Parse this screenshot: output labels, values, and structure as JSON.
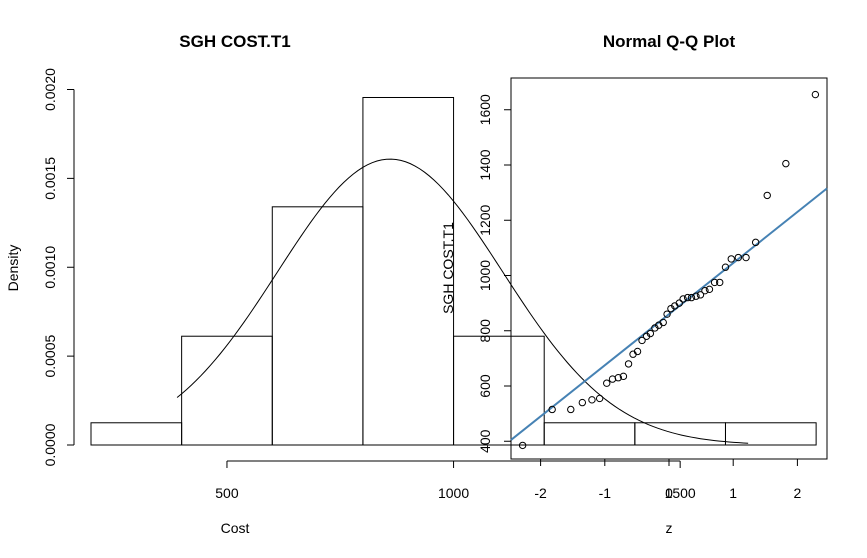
{
  "chart_data": [
    {
      "type": "histogram",
      "title": "SGH COST.T1",
      "xlabel": "Cost",
      "ylabel": "Density",
      "xticks": [
        500,
        1000,
        1500
      ],
      "yticks": [
        0.0,
        0.0005,
        0.001,
        0.0015,
        0.002
      ],
      "ytick_labels": [
        "0.0000",
        "0.0005",
        "0.0010",
        "0.0015",
        "0.0020"
      ],
      "bins": [
        {
          "from": 200,
          "to": 400,
          "density": 0.000125
        },
        {
          "from": 400,
          "to": 600,
          "density": 0.000612
        },
        {
          "from": 600,
          "to": 800,
          "density": 0.00134
        },
        {
          "from": 800,
          "to": 1000,
          "density": 0.001955
        },
        {
          "from": 1000,
          "to": 1200,
          "density": 0.000612
        },
        {
          "from": 1200,
          "to": 1400,
          "density": 0.000125
        },
        {
          "from": 1400,
          "to": 1600,
          "density": 0.000125
        },
        {
          "from": 1600,
          "to": 1800,
          "density": 0.000125
        }
      ],
      "density_curve": {
        "type": "normal",
        "mean": 860,
        "sd": 248,
        "x_range": [
          390,
          1650
        ]
      }
    },
    {
      "type": "scatter",
      "title": "Normal Q-Q Plot",
      "xlabel": "z",
      "ylabel": "SGH COST.T1",
      "xticks": [
        -2,
        -1,
        0,
        1,
        2
      ],
      "yticks": [
        400,
        600,
        800,
        1000,
        1200,
        1400,
        1600
      ],
      "points": {
        "x": [
          -2.28,
          -1.82,
          -1.53,
          -1.35,
          -1.2,
          -1.08,
          -0.97,
          -0.88,
          -0.79,
          -0.71,
          -0.63,
          -0.56,
          -0.49,
          -0.42,
          -0.35,
          -0.29,
          -0.22,
          -0.16,
          -0.09,
          -0.03,
          0.03,
          0.09,
          0.16,
          0.22,
          0.29,
          0.35,
          0.42,
          0.49,
          0.56,
          0.63,
          0.71,
          0.79,
          0.88,
          0.97,
          1.08,
          1.2,
          1.35,
          1.53,
          1.82,
          2.28
        ],
        "y": [
          385,
          515,
          515,
          540,
          550,
          555,
          610,
          625,
          630,
          635,
          680,
          715,
          725,
          765,
          780,
          790,
          810,
          820,
          830,
          860,
          880,
          890,
          900,
          915,
          920,
          920,
          925,
          930,
          945,
          950,
          975,
          975,
          1030,
          1060,
          1065,
          1065,
          1120,
          1290,
          1405,
          1655
        ]
      },
      "reference_line": {
        "intercept": 860,
        "slope": 185
      },
      "line_color": "#4682b4"
    }
  ]
}
